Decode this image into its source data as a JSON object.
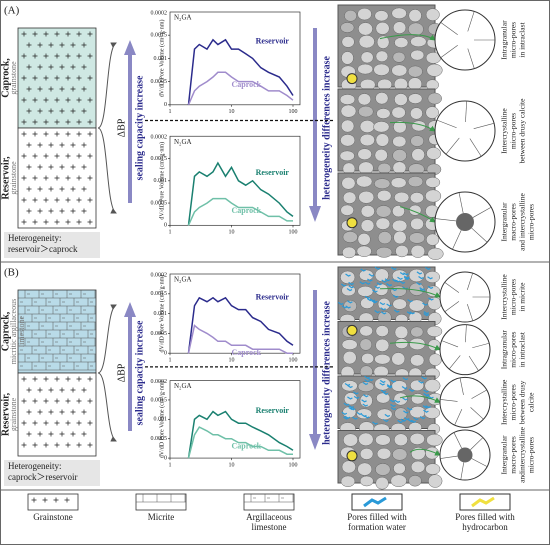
{
  "panels": [
    {
      "label": "(A)",
      "upper_rock": [
        "Caprock,",
        "grainstone"
      ],
      "lower_rock": [
        "Reservoir,",
        "grainstone"
      ],
      "heterogeneity": [
        "Heterogeneity:",
        "reservoir＞caprock"
      ],
      "delta_bp": "ΔBP",
      "sealing": "sealing capacity increase",
      "hetero_arrow": "heterogeneity differences increase",
      "charts": [
        {
          "type": "line",
          "label": "N₂GA",
          "ylabel": "dV/dD Pore Volume (cm³/g·nm)",
          "top_label": "0.0002",
          "xlim": [
            1,
            130
          ],
          "ylim": [
            0,
            0.002
          ],
          "xticks": [
            1,
            10,
            100
          ],
          "yticks": [
            0,
            0.0005,
            0.001,
            0.0015
          ],
          "log_x": true,
          "x": [
            2,
            2.5,
            3,
            4,
            5,
            6,
            8,
            10,
            13,
            17,
            22,
            30,
            40,
            60,
            80,
            100
          ],
          "series": [
            {
              "name": "Reservoir",
              "color": "#2b2b8c",
              "values": [
                0,
                0.0012,
                0.0013,
                0.0012,
                0.0014,
                0.0013,
                0.0014,
                0.0012,
                0.0012,
                0.0011,
                0.001,
                0.0008,
                0.0007,
                0.0006,
                0.0004,
                0.0002
              ]
            },
            {
              "name": "Caprock",
              "color": "#a08ccc",
              "values": [
                0,
                0.0003,
                0.0004,
                0.0005,
                0.0006,
                0.0007,
                0.0007,
                0.0006,
                0.0005,
                0.0005,
                0.0005,
                0.0004,
                0.0003,
                0.0003,
                0.0002,
                0.0001
              ]
            }
          ]
        },
        {
          "type": "line",
          "label": "N₂GA",
          "ylabel": "dV/dD Pore Volume (cm³/g·nm)",
          "top_label": "0.0002",
          "xlim": [
            1,
            130
          ],
          "ylim": [
            0,
            0.002
          ],
          "xticks": [
            1,
            10,
            100
          ],
          "yticks": [
            0,
            0.0005,
            0.001,
            0.0015
          ],
          "log_x": true,
          "x": [
            2,
            2.5,
            3,
            4,
            5,
            6,
            8,
            10,
            13,
            17,
            22,
            30,
            40,
            60,
            80,
            100
          ],
          "series": [
            {
              "name": "Reservoir",
              "color": "#1a8070",
              "values": [
                0,
                0.0011,
                0.0012,
                0.0011,
                0.0012,
                0.0014,
                0.0011,
                0.0013,
                0.001,
                0.0009,
                0.001,
                0.0008,
                0.0007,
                0.0005,
                0.0003,
                0.0002
              ]
            },
            {
              "name": "Caprock",
              "color": "#6fc0a8",
              "values": [
                0,
                0.0003,
                0.0004,
                0.0005,
                0.0006,
                0.0006,
                0.0006,
                0.0005,
                0.0004,
                0.0004,
                0.0004,
                0.0003,
                0.0002,
                0.0002,
                0.0001,
                0.0001
              ]
            }
          ]
        }
      ],
      "pores": [
        [
          "Intragranular",
          "micro-pores",
          "in intraclast"
        ],
        [
          "Intercrystalline",
          "micro-pores",
          "between drusy calcite"
        ],
        [
          "Intergranular",
          "macro-pores",
          "and intercrystalline",
          "micro-pores"
        ]
      ]
    },
    {
      "label": "(B)",
      "upper_rock": [
        "Caprock,",
        "micritic argillaceous",
        "limestone"
      ],
      "lower_rock": [
        "Reservoir,",
        "grainstone"
      ],
      "heterogeneity": [
        "Heterogeneity:",
        "caprock＞reservoir"
      ],
      "delta_bp": "ΔBP",
      "sealing": "sealing capacity increase",
      "hetero_arrow": "heterogeneity differences increase",
      "charts": [
        {
          "type": "line",
          "label": "N₂GA",
          "ylabel": "dV/dD Pore Volume (cm³/g·nm)",
          "top_label": "0.0002",
          "xlim": [
            1,
            130
          ],
          "ylim": [
            0,
            0.002
          ],
          "xticks": [
            1,
            10,
            100
          ],
          "yticks": [
            0,
            0.0005,
            0.001,
            0.0015
          ],
          "log_x": true,
          "x": [
            2,
            2.5,
            3,
            4,
            5,
            6,
            8,
            10,
            13,
            17,
            22,
            30,
            40,
            60,
            80,
            100
          ],
          "series": [
            {
              "name": "Reservoir",
              "color": "#2b2b8c",
              "values": [
                0,
                0.0012,
                0.0014,
                0.0013,
                0.0014,
                0.0013,
                0.0014,
                0.0012,
                0.0011,
                0.0011,
                0.0009,
                0.0008,
                0.0006,
                0.0005,
                0.0003,
                0.0002
              ]
            },
            {
              "name": "Caprock",
              "color": "#a08ccc",
              "values": [
                0,
                0.0007,
                0.0006,
                0.0005,
                0.0004,
                0.0003,
                0.0003,
                0.0002,
                0.0002,
                0.0002,
                0.0001,
                0.0001,
                0.0001,
                0.0001,
                0,
                0
              ]
            }
          ]
        },
        {
          "type": "line",
          "label": "N₂GA",
          "ylabel": "dV/dD Pore Volume (cm³/g·nm)",
          "top_label": "0.0002",
          "xlim": [
            1,
            130
          ],
          "ylim": [
            0,
            0.002
          ],
          "xticks": [
            1,
            10,
            100
          ],
          "yticks": [
            0,
            0.0005,
            0.001,
            0.0015
          ],
          "log_x": true,
          "x": [
            2,
            2.5,
            3,
            4,
            5,
            6,
            8,
            10,
            13,
            17,
            22,
            30,
            40,
            60,
            80,
            100
          ],
          "series": [
            {
              "name": "Reservoir",
              "color": "#1a8070",
              "values": [
                0,
                0.001,
                0.0011,
                0.001,
                0.0012,
                0.0011,
                0.0012,
                0.001,
                0.0009,
                0.0009,
                0.0008,
                0.0007,
                0.0006,
                0.0004,
                0.0003,
                0.0002
              ]
            },
            {
              "name": "Caprock",
              "color": "#6fc0a8",
              "values": [
                0,
                0.0006,
                0.0008,
                0.0007,
                0.0006,
                0.0006,
                0.0005,
                0.0005,
                0.0004,
                0.0004,
                0.0003,
                0.0003,
                0.0002,
                0.0002,
                0.0001,
                0.0001
              ]
            }
          ]
        }
      ],
      "pores": [
        [
          "Intercrystalline",
          "micro-pores",
          "in micrite"
        ],
        [
          "Intragranular",
          "micro-pores",
          "in intraclast"
        ],
        [
          "Intercrystalline",
          "micro-pores",
          "between drusy",
          "calcite"
        ],
        [
          "Intergranular",
          "macro-pores",
          "andintercrystalline",
          "micro-pores"
        ]
      ]
    }
  ],
  "legend": [
    [
      "Grainstone"
    ],
    [
      "Micrite"
    ],
    [
      "Argillaceous",
      "limestone"
    ],
    [
      "Pores filled with",
      "formation water"
    ],
    [
      "Pores filled with",
      "hydrocarbon"
    ]
  ]
}
